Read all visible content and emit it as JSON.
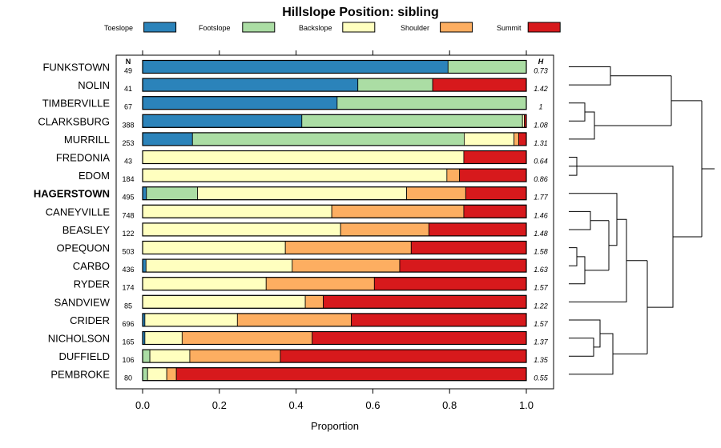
{
  "chart_data": {
    "type": "bar",
    "orientation": "horizontal",
    "stacked": true,
    "title": "Hillslope Position: sibling",
    "xlabel": "Proportion",
    "ylabel": "",
    "xlim": [
      0,
      1
    ],
    "x_ticks": [
      "0.0",
      "0.2",
      "0.4",
      "0.6",
      "0.8",
      "1.0"
    ],
    "x_tick_values": [
      0,
      0.2,
      0.4,
      0.6,
      0.8,
      1.0
    ],
    "n_header": "N",
    "h_header": "H",
    "highlight": "HAGERSTOWN",
    "legend_position": "top",
    "series": [
      {
        "name": "Toeslope",
        "color": "#2B83BA"
      },
      {
        "name": "Footslope",
        "color": "#ABDDA4"
      },
      {
        "name": "Backslope",
        "color": "#FFFFBF"
      },
      {
        "name": "Shoulder",
        "color": "#FDAE61"
      },
      {
        "name": "Summit",
        "color": "#D7191C"
      }
    ],
    "categories": [
      "FUNKSTOWN",
      "NOLIN",
      "TIMBERVILLE",
      "CLARKSBURG",
      "MURRILL",
      "FREDONIA",
      "EDOM",
      "HAGERSTOWN",
      "CANEYVILLE",
      "BEASLEY",
      "OPEQUON",
      "CARBO",
      "RYDER",
      "SANDVIEW",
      "CRIDER",
      "NICHOLSON",
      "DUFFIELD",
      "PEMBROKE"
    ],
    "n": [
      "49",
      "41",
      "67",
      "388",
      "253",
      "43",
      "184",
      "495",
      "748",
      "122",
      "503",
      "436",
      "174",
      "85",
      "696",
      "165",
      "106",
      "80"
    ],
    "h": [
      "0.73",
      "1.42",
      "1",
      "1.08",
      "1.31",
      "0.64",
      "0.86",
      "1.77",
      "1.46",
      "1.48",
      "1.58",
      "1.63",
      "1.57",
      "1.22",
      "1.57",
      "1.37",
      "1.35",
      "0.55"
    ],
    "proportions": [
      [
        0.796,
        0.204,
        0.0,
        0.0,
        0.0
      ],
      [
        0.561,
        0.195,
        0.0,
        0.0,
        0.244
      ],
      [
        0.507,
        0.493,
        0.0,
        0.0,
        0.0
      ],
      [
        0.415,
        0.575,
        0.005,
        0.0,
        0.005
      ],
      [
        0.13,
        0.708,
        0.13,
        0.012,
        0.02
      ],
      [
        0.0,
        0.0,
        0.837,
        0.0,
        0.163
      ],
      [
        0.0,
        0.0,
        0.793,
        0.033,
        0.174
      ],
      [
        0.01,
        0.133,
        0.545,
        0.154,
        0.158
      ],
      [
        0.0,
        0.0,
        0.493,
        0.344,
        0.163
      ],
      [
        0.0,
        0.0,
        0.516,
        0.23,
        0.254
      ],
      [
        0.0,
        0.0,
        0.372,
        0.328,
        0.3
      ],
      [
        0.009,
        0.0,
        0.381,
        0.28,
        0.33
      ],
      [
        0.0,
        0.0,
        0.322,
        0.282,
        0.396
      ],
      [
        0.0,
        0.0,
        0.424,
        0.047,
        0.529
      ],
      [
        0.006,
        0.0,
        0.241,
        0.297,
        0.456
      ],
      [
        0.006,
        0.0,
        0.097,
        0.339,
        0.558
      ],
      [
        0.0,
        0.019,
        0.104,
        0.236,
        0.641
      ],
      [
        0.0,
        0.013,
        0.05,
        0.025,
        0.912
      ]
    ]
  }
}
